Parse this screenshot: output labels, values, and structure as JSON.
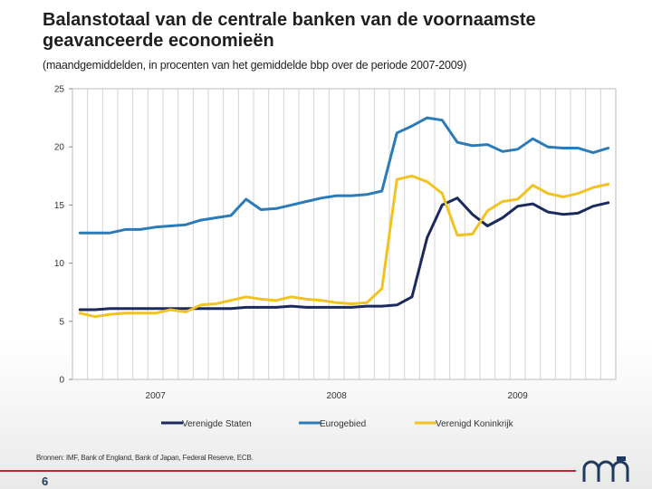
{
  "header": {
    "title": "Balanstotaal van de centrale banken van de voornaamste geavanceerde economieën",
    "subtitle": "(maandgemiddelden, in procenten van het gemiddelde bbp over de periode 2007-2009)"
  },
  "footer": {
    "source": "Bronnen: IMF, Bank of England, Bank of Japan, Federal Reserve, ECB.",
    "page_number": "6",
    "accent_color": "#c0262d"
  },
  "logo": {
    "icon": "nbb-logo-icon",
    "color": "#1f3a5f"
  },
  "chart_data": {
    "type": "line",
    "title": "",
    "xlabel": "",
    "ylabel": "",
    "ylim": [
      0,
      25
    ],
    "yticks": [
      "0",
      "5",
      "10",
      "15",
      "20",
      "25"
    ],
    "xticks": [
      {
        "label": "2007",
        "x": "2007-06"
      },
      {
        "label": "2008",
        "x": "2008-06"
      },
      {
        "label": "2009",
        "x": "2009-06"
      }
    ],
    "grid": true,
    "legend_position": "bottom",
    "x": [
      "2007-01",
      "2007-02",
      "2007-03",
      "2007-04",
      "2007-05",
      "2007-06",
      "2007-07",
      "2007-08",
      "2007-09",
      "2007-10",
      "2007-11",
      "2007-12",
      "2008-01",
      "2008-02",
      "2008-03",
      "2008-04",
      "2008-05",
      "2008-06",
      "2008-07",
      "2008-08",
      "2008-09",
      "2008-10",
      "2008-11",
      "2008-12",
      "2009-01",
      "2009-02",
      "2009-03",
      "2009-04",
      "2009-05",
      "2009-06",
      "2009-07",
      "2009-08",
      "2009-09",
      "2009-10",
      "2009-11",
      "2009-12"
    ],
    "series": [
      {
        "name": "Verenigde Staten",
        "color": "#1b2a5c",
        "values": [
          6.0,
          6.0,
          6.1,
          6.1,
          6.1,
          6.1,
          6.1,
          6.1,
          6.1,
          6.1,
          6.1,
          6.2,
          6.2,
          6.2,
          6.3,
          6.2,
          6.2,
          6.2,
          6.2,
          6.3,
          6.3,
          6.4,
          7.1,
          12.2,
          15.0,
          15.6,
          14.2,
          13.2,
          13.9,
          14.9,
          15.1,
          14.4,
          14.2,
          14.3,
          14.9,
          15.2
        ]
      },
      {
        "name": "Eurogebied",
        "color": "#2b7bb9",
        "values": [
          12.6,
          12.6,
          12.6,
          12.9,
          12.9,
          13.1,
          13.2,
          13.3,
          13.7,
          13.9,
          14.1,
          15.5,
          14.6,
          14.7,
          15.0,
          15.3,
          15.6,
          15.8,
          15.8,
          15.9,
          16.2,
          21.2,
          21.8,
          22.5,
          22.3,
          20.4,
          20.1,
          20.2,
          19.6,
          19.8,
          20.7,
          20.0,
          19.9,
          19.9,
          19.5,
          19.9
        ]
      },
      {
        "name": "Verenigd Koninkrijk",
        "color": "#f2c221",
        "values": [
          5.7,
          5.4,
          5.6,
          5.7,
          5.7,
          5.7,
          6.0,
          5.8,
          6.4,
          6.5,
          6.8,
          7.1,
          6.9,
          6.8,
          7.1,
          6.9,
          6.8,
          6.6,
          6.5,
          6.6,
          7.8,
          17.2,
          17.5,
          17.0,
          16.0,
          12.4,
          12.5,
          14.5,
          15.3,
          15.5,
          16.7,
          16.0,
          15.7,
          16.0,
          16.5,
          16.8
        ]
      }
    ]
  }
}
